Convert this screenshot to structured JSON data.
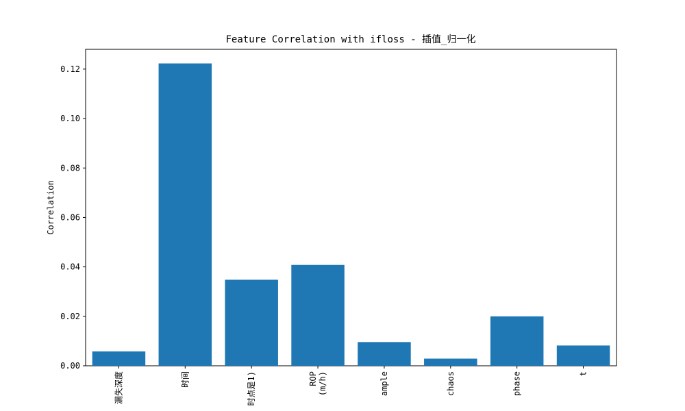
{
  "chart_data": {
    "type": "bar",
    "title": "Feature Correlation with ifloss - 插值_归一化",
    "xlabel": "",
    "ylabel": "Correlation",
    "categories": [
      "漏失深度",
      "时间",
      "时点是1)",
      "ROP\n(m/h)",
      "ample",
      "chaos",
      "phase",
      "t"
    ],
    "values": [
      0.0058,
      0.1223,
      0.0348,
      0.0408,
      0.0096,
      0.0029,
      0.02,
      0.0082
    ],
    "ylim": [
      0,
      0.128
    ],
    "yticks": [
      0.0,
      0.02,
      0.04,
      0.06,
      0.08,
      0.1,
      0.12
    ],
    "ytick_labels": [
      "0.00",
      "0.02",
      "0.04",
      "0.06",
      "0.08",
      "0.10",
      "0.12"
    ],
    "bar_color": "#1f77b4",
    "grid": false,
    "legend": "none"
  }
}
